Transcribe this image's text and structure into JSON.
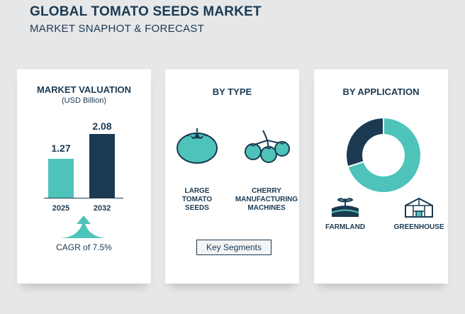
{
  "header": {
    "title": "GLOBAL TOMATO SEEDS MARKET",
    "subtitle": "MARKET SNAPHOT  & FORECAST"
  },
  "valuation": {
    "heading": "MARKET VALUATION",
    "unit": "(USD Billion)",
    "cagr": "CAGR of 7.5%"
  },
  "chart_data": [
    {
      "type": "bar",
      "title": "MARKET VALUATION",
      "ylabel": "(USD Billion)",
      "categories": [
        "2025",
        "2032"
      ],
      "values": [
        1.27,
        2.08
      ],
      "value_labels": [
        "1.27",
        "2.08"
      ],
      "colors": [
        "#4ec3b9",
        "#1b3a52"
      ],
      "ylim": [
        0,
        2.3
      ]
    },
    {
      "type": "pie",
      "title": "BY APPLICATION",
      "categories": [
        "FARMLAND",
        "GREENHOUSE"
      ],
      "values": [
        30,
        70
      ],
      "colors": [
        "#1b3a52",
        "#4ec3b9"
      ]
    }
  ],
  "by_type": {
    "heading": "BY TYPE",
    "items": [
      "LARGE\nTOMATO\nSEEDS",
      "CHERRY\nMANUFACTURING\nMACHINES"
    ],
    "button": "Key Segments"
  },
  "by_application": {
    "heading": "BY APPLICATION",
    "items": [
      "FARMLAND",
      "GREENHOUSE"
    ]
  },
  "colors": {
    "navy": "#1b3a52",
    "teal": "#4ec3b9",
    "background": "#e6e7e9"
  }
}
